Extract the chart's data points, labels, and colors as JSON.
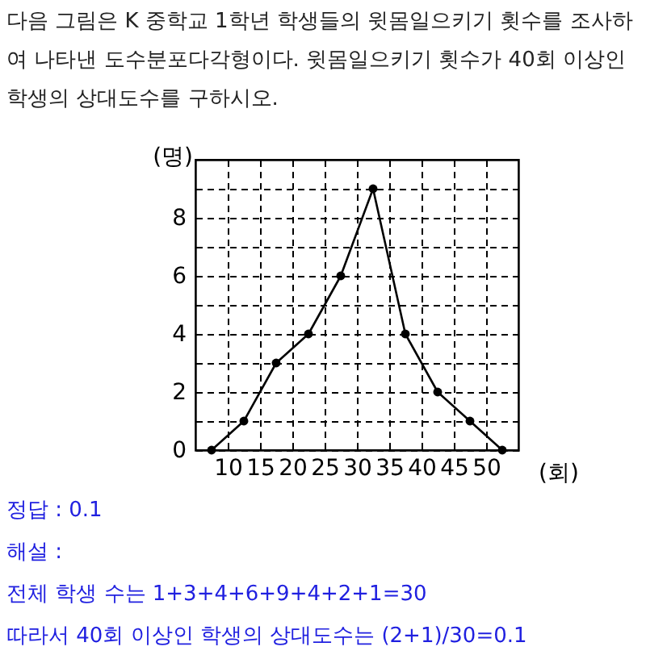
{
  "chart_data": {
    "type": "line",
    "title": "다음 그림은 K 중학교 1학년 학생들의 윗몸일으키기 횟수를 조사하여 나타낸 도수분포다각형이다. 윗몸일으키기 횟수가 40회 이상인 학생의 상대도수를 구하시오.",
    "xlabel": "(회)",
    "ylabel": "(명)",
    "x": [
      7.5,
      12.5,
      17.5,
      22.5,
      27.5,
      32.5,
      37.5,
      42.5,
      47.5,
      52.5
    ],
    "series": [
      {
        "color": "#000000",
        "values": [
          0,
          1,
          3,
          4,
          6,
          9,
          4,
          2,
          1,
          0
        ]
      }
    ],
    "xlim": [
      5,
      55
    ],
    "xticks": [
      10,
      15,
      20,
      25,
      30,
      35,
      40,
      45,
      50
    ],
    "ylim": [
      0,
      10
    ],
    "yticks": [
      0,
      {
        "value": 1,
        "label": null
      },
      2,
      {
        "value": 3,
        "label": null
      },
      4,
      {
        "value": 5,
        "label": null
      },
      6,
      {
        "value": 7,
        "label": null
      },
      8,
      {
        "value": 9,
        "label": null
      }
    ],
    "grid": true,
    "marker": "circle",
    "line_style": "solid",
    "annotations": [
      "정답 : 0.1",
      "해설 :",
      "전체 학생 수는 1+3+4+6+9+4+2+1=30",
      "따라서 40회 이상인 학생의 상대도수는 (2+1)/30=0.1"
    ]
  }
}
